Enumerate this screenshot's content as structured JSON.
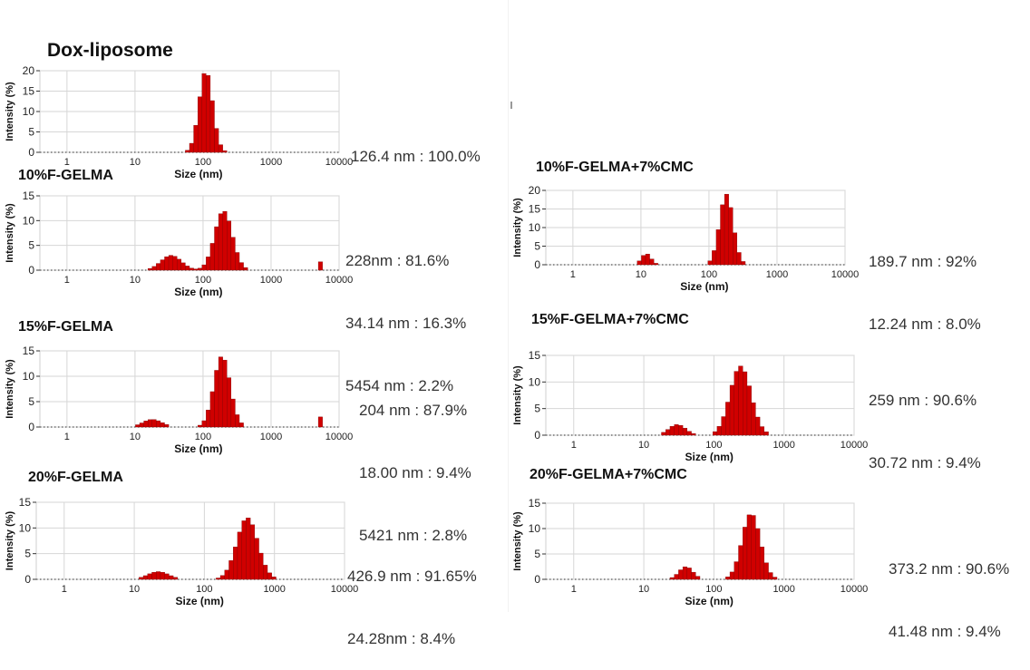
{
  "panels": [
    {
      "title": "Dox-liposome",
      "peak_lines": [
        "126.4 nm : 100.0%"
      ]
    },
    {
      "title": "10%F-GELMA",
      "peak_lines": [
        "228nm : 81.6%",
        "34.14 nm : 16.3%",
        "5454 nm : 2.2%"
      ]
    },
    {
      "title": "15%F-GELMA",
      "peak_lines": [
        "204 nm : 87.9%",
        "18.00 nm : 9.4%",
        "5421 nm : 2.8%"
      ]
    },
    {
      "title": "20%F-GELMA",
      "peak_lines": [
        "426.9 nm : 91.65%",
        "24.28nm : 8.4%"
      ]
    },
    {
      "title": "10%F-GELMA+7%CMC",
      "peak_lines": [
        "189.7 nm : 92%",
        "12.24 nm : 8.0%"
      ]
    },
    {
      "title": "15%F-GELMA+7%CMC",
      "peak_lines": [
        "259 nm : 90.6%",
        "30.72 nm : 9.4%"
      ]
    },
    {
      "title": "20%F-GELMA+7%CMC",
      "peak_lines": [
        "373.2 nm : 90.6%",
        "41.48 nm : 9.4%"
      ]
    }
  ],
  "chart_data": [
    {
      "type": "bar",
      "xscale": "log",
      "xlabel": "Size (nm)",
      "ylabel": "Intensity (%)",
      "xlim": [
        0.4,
        10000
      ],
      "ylim": [
        0,
        20
      ],
      "xticks": [
        "1",
        "10",
        "100",
        "1000",
        "10000"
      ],
      "yticks": [
        "0",
        "5",
        "10",
        "15",
        "20"
      ],
      "grid": true,
      "bar_color": "#d00000",
      "peaks": [
        {
          "mode": 110,
          "height": 20,
          "sigma": 0.1
        }
      ]
    },
    {
      "type": "bar",
      "xscale": "log",
      "xlabel": "Size (nm)",
      "ylabel": "Intensity (%)",
      "xlim": [
        0.4,
        10000
      ],
      "ylim": [
        0,
        15
      ],
      "xticks": [
        "1",
        "10",
        "100",
        "1000",
        "10000"
      ],
      "yticks": [
        "0",
        "5",
        "10",
        "15"
      ],
      "grid": true,
      "bar_color": "#d00000",
      "peaks": [
        {
          "mode": 34,
          "height": 3,
          "sigma": 0.15
        },
        {
          "mode": 200,
          "height": 12,
          "sigma": 0.13
        },
        {
          "mode": 5454,
          "height": 2,
          "sigma": 0.02
        }
      ]
    },
    {
      "type": "bar",
      "xscale": "log",
      "xlabel": "Size (nm)",
      "ylabel": "Intensity (%)",
      "xlim": [
        0.4,
        10000
      ],
      "ylim": [
        0,
        15
      ],
      "xticks": [
        "1",
        "10",
        "100",
        "1000",
        "10000"
      ],
      "yticks": [
        "0",
        "5",
        "10",
        "15"
      ],
      "grid": true,
      "bar_color": "#d00000",
      "peaks": [
        {
          "mode": 18,
          "height": 1.5,
          "sigma": 0.14
        },
        {
          "mode": 190,
          "height": 14,
          "sigma": 0.12
        },
        {
          "mode": 5421,
          "height": 2.2,
          "sigma": 0.02
        }
      ]
    },
    {
      "type": "bar",
      "xscale": "log",
      "xlabel": "Size (nm)",
      "ylabel": "Intensity (%)",
      "xlim": [
        0.4,
        10000
      ],
      "ylim": [
        0,
        15
      ],
      "xticks": [
        "1",
        "10",
        "100",
        "1000",
        "10000"
      ],
      "yticks": [
        "0",
        "5",
        "10",
        "15"
      ],
      "grid": true,
      "bar_color": "#d00000",
      "peaks": [
        {
          "mode": 22,
          "height": 1.5,
          "sigma": 0.15
        },
        {
          "mode": 410,
          "height": 12,
          "sigma": 0.15
        }
      ]
    },
    {
      "type": "bar",
      "xscale": "log",
      "xlabel": "Size (nm)",
      "ylabel": "Intensity (%)",
      "xlim": [
        0.4,
        10000
      ],
      "ylim": [
        0,
        20
      ],
      "xticks": [
        "1",
        "10",
        "100",
        "1000",
        "10000"
      ],
      "yticks": [
        "0",
        "5",
        "10",
        "15",
        "20"
      ],
      "grid": true,
      "bar_color": "#d00000",
      "peaks": [
        {
          "mode": 12,
          "height": 3,
          "sigma": 0.07
        },
        {
          "mode": 180,
          "height": 19,
          "sigma": 0.1
        }
      ]
    },
    {
      "type": "bar",
      "xscale": "log",
      "xlabel": "Size (nm)",
      "ylabel": "Intensity (%)",
      "xlim": [
        0.4,
        10000
      ],
      "ylim": [
        0,
        15
      ],
      "xticks": [
        "1",
        "10",
        "100",
        "1000",
        "10000"
      ],
      "yticks": [
        "0",
        "5",
        "10",
        "15"
      ],
      "grid": true,
      "bar_color": "#d00000",
      "peaks": [
        {
          "mode": 30,
          "height": 2,
          "sigma": 0.12
        },
        {
          "mode": 240,
          "height": 13,
          "sigma": 0.15
        }
      ]
    },
    {
      "type": "bar",
      "xscale": "log",
      "xlabel": "Size (nm)",
      "ylabel": "Intensity (%)",
      "xlim": [
        0.4,
        10000
      ],
      "ylim": [
        0,
        15
      ],
      "xticks": [
        "1",
        "10",
        "100",
        "1000",
        "10000"
      ],
      "yticks": [
        "0",
        "5",
        "10",
        "15"
      ],
      "grid": true,
      "bar_color": "#d00000",
      "peaks": [
        {
          "mode": 40,
          "height": 2.5,
          "sigma": 0.1
        },
        {
          "mode": 340,
          "height": 13,
          "sigma": 0.13
        }
      ]
    }
  ]
}
